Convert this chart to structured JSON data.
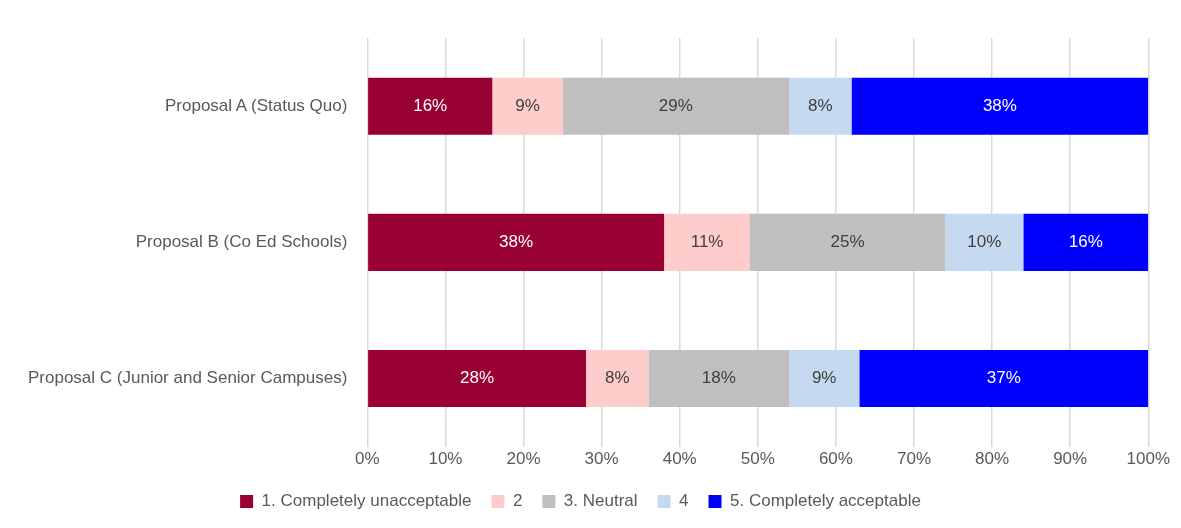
{
  "chart_data": {
    "type": "bar",
    "orientation": "horizontal",
    "stacked": true,
    "categories": [
      "Proposal A (Status Quo)",
      "Proposal B (Co Ed Schools)",
      "Proposal C (Junior and Senior Campuses)"
    ],
    "series": [
      {
        "name": "1. Completely unacceptable",
        "color": "#990033",
        "values": [
          16,
          38,
          28
        ],
        "value_labels": [
          "16%",
          "38%",
          "28%"
        ]
      },
      {
        "name": "2",
        "color": "#ffcccc",
        "values": [
          9,
          11,
          8
        ],
        "value_labels": [
          "9%",
          "11%",
          "8%"
        ]
      },
      {
        "name": "3. Neutral",
        "color": "#bfbfbf",
        "values": [
          29,
          25,
          18
        ],
        "value_labels": [
          "29%",
          "25%",
          "18%"
        ]
      },
      {
        "name": "4",
        "color": "#c5d9f1",
        "values": [
          8,
          10,
          9
        ],
        "value_labels": [
          "8%",
          "10%",
          "9%"
        ]
      },
      {
        "name": "5. Completely acceptable",
        "color": "#0000ff",
        "values": [
          38,
          16,
          37
        ],
        "value_labels": [
          "38%",
          "16%",
          "37%"
        ]
      }
    ],
    "xlim": [
      0,
      100
    ],
    "xticks": [
      {
        "value": 0,
        "label": "0%"
      },
      {
        "value": 10,
        "label": "10%"
      },
      {
        "value": 20,
        "label": "20%"
      },
      {
        "value": 30,
        "label": "30%"
      },
      {
        "value": 40,
        "label": "40%"
      },
      {
        "value": 50,
        "label": "50%"
      },
      {
        "value": 60,
        "label": "60%"
      },
      {
        "value": 70,
        "label": "70%"
      },
      {
        "value": 80,
        "label": "80%"
      },
      {
        "value": 90,
        "label": "90%"
      },
      {
        "value": 100,
        "label": "100%"
      }
    ],
    "grid": "x",
    "legend": "bottom"
  }
}
